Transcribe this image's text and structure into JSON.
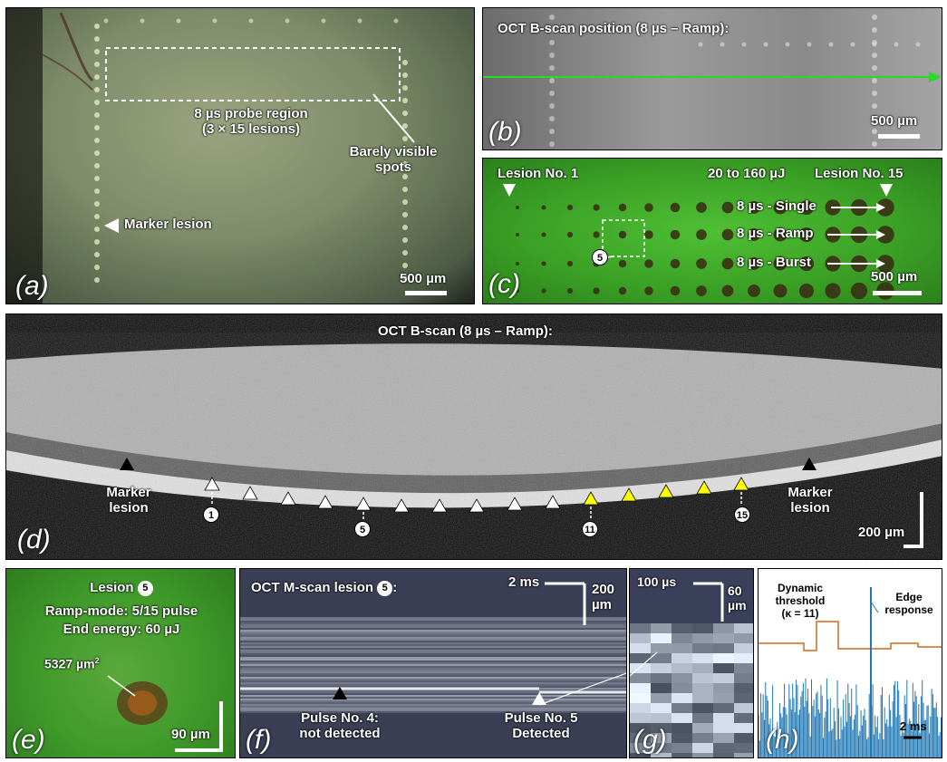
{
  "panels": {
    "a": {
      "label": "(a)",
      "probe_region_line1": "8 µs probe region",
      "probe_region_line2": "(3 × 15 lesions)",
      "barely_visible_line1": "Barely visible",
      "barely_visible_line2": "spots",
      "marker": "Marker lesion",
      "scale": "500 µm"
    },
    "b": {
      "label": "(b)",
      "title": "OCT B-scan position (8 µs – Ramp):",
      "scale": "500 µm"
    },
    "c": {
      "label": "(c)",
      "lesion_first": "Lesion No. 1",
      "energy_range": "20 to 160 µJ",
      "lesion_last": "Lesion No. 15",
      "row_single": "8 µs - Single",
      "row_ramp": "8 µs - Ramp",
      "row_burst": "8 µs - Burst",
      "circled": "5",
      "scale": "500 µm"
    },
    "d": {
      "label": "(d)",
      "title": "OCT B-scan (8 µs – Ramp):",
      "marker_left_line1": "Marker",
      "marker_left_line2": "lesion",
      "marker_right_line1": "Marker",
      "marker_right_line2": "lesion",
      "lesion_numbers": [
        "1",
        "5",
        "11",
        "15"
      ],
      "scale": "200 µm"
    },
    "e": {
      "label": "(e)",
      "title_prefix": "Lesion",
      "title_num": "5",
      "mode": "Ramp-mode: 5/15 pulse",
      "energy": "End energy: 60 µJ",
      "area": "5327 µm",
      "area_sup": "2",
      "scale": "90 µm"
    },
    "f": {
      "label": "(f)",
      "title_prefix": "OCT M-scan lesion",
      "title_num": "5",
      "title_suffix": ":",
      "time_scale": "2 ms",
      "depth_scale_line1": "200",
      "depth_scale_line2": "µm",
      "pulse4_line1": "Pulse No. 4:",
      "pulse4_line2": "not detected",
      "pulse5_line1": "Pulse No. 5",
      "pulse5_line2": "Detected"
    },
    "g": {
      "label": "(g)",
      "time_scale": "100 µs",
      "depth_scale_line1": "60",
      "depth_scale_line2": "µm"
    },
    "h": {
      "label": "(h)",
      "threshold_line1": "Dynamic",
      "threshold_line2": "threshold",
      "threshold_line3": "(κ = 11)",
      "edge_line1": "Edge",
      "edge_line2": "response",
      "time_scale": "2 ms"
    }
  },
  "colors": {
    "fundus": "#7f8f6a",
    "green_arrow": "#22dd22",
    "autofluor": "#3faa2a",
    "threshold": "#d2691e",
    "signal": "#1f77b4",
    "yellow_marker": "#ffff00"
  }
}
